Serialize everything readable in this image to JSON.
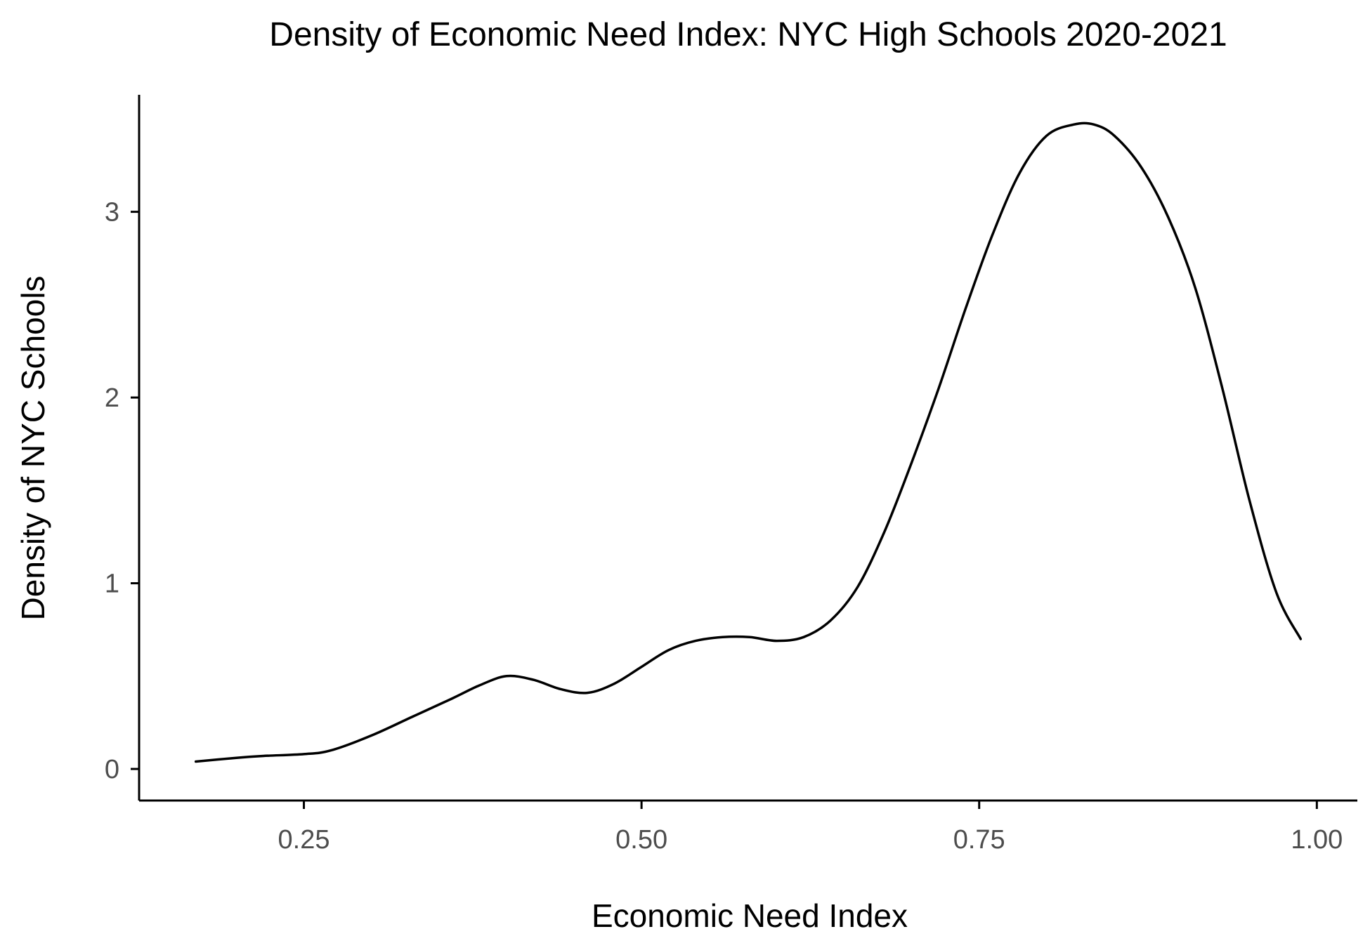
{
  "chart_data": {
    "type": "line",
    "title": "Density of Economic Need Index: NYC High Schools 2020-2021",
    "xlabel": "Economic Need Index",
    "ylabel": "Density of NYC Schools",
    "xlim": [
      0.128,
      1.03
    ],
    "ylim": [
      -0.17,
      3.63
    ],
    "x_ticks": [
      0.25,
      0.5,
      0.75,
      1.0
    ],
    "x_tick_labels": [
      "0.25",
      "0.50",
      "0.75",
      "1.00"
    ],
    "y_ticks": [
      0,
      1,
      2,
      3
    ],
    "y_tick_labels": [
      "0",
      "1",
      "2",
      "3"
    ],
    "grid": false,
    "series": [
      {
        "line_color": "#000000",
        "x": [
          0.17,
          0.2,
          0.22,
          0.25,
          0.27,
          0.3,
          0.33,
          0.36,
          0.38,
          0.4,
          0.42,
          0.44,
          0.46,
          0.48,
          0.5,
          0.52,
          0.54,
          0.56,
          0.58,
          0.6,
          0.62,
          0.64,
          0.66,
          0.68,
          0.7,
          0.72,
          0.74,
          0.76,
          0.78,
          0.8,
          0.82,
          0.835,
          0.85,
          0.87,
          0.89,
          0.91,
          0.93,
          0.95,
          0.97,
          0.988
        ],
        "y": [
          0.04,
          0.06,
          0.07,
          0.08,
          0.1,
          0.18,
          0.28,
          0.38,
          0.45,
          0.5,
          0.48,
          0.43,
          0.41,
          0.46,
          0.55,
          0.64,
          0.69,
          0.71,
          0.71,
          0.69,
          0.71,
          0.8,
          0.98,
          1.28,
          1.65,
          2.05,
          2.48,
          2.88,
          3.21,
          3.41,
          3.47,
          3.47,
          3.41,
          3.24,
          2.97,
          2.59,
          2.05,
          1.45,
          0.95,
          0.7
        ]
      }
    ]
  }
}
